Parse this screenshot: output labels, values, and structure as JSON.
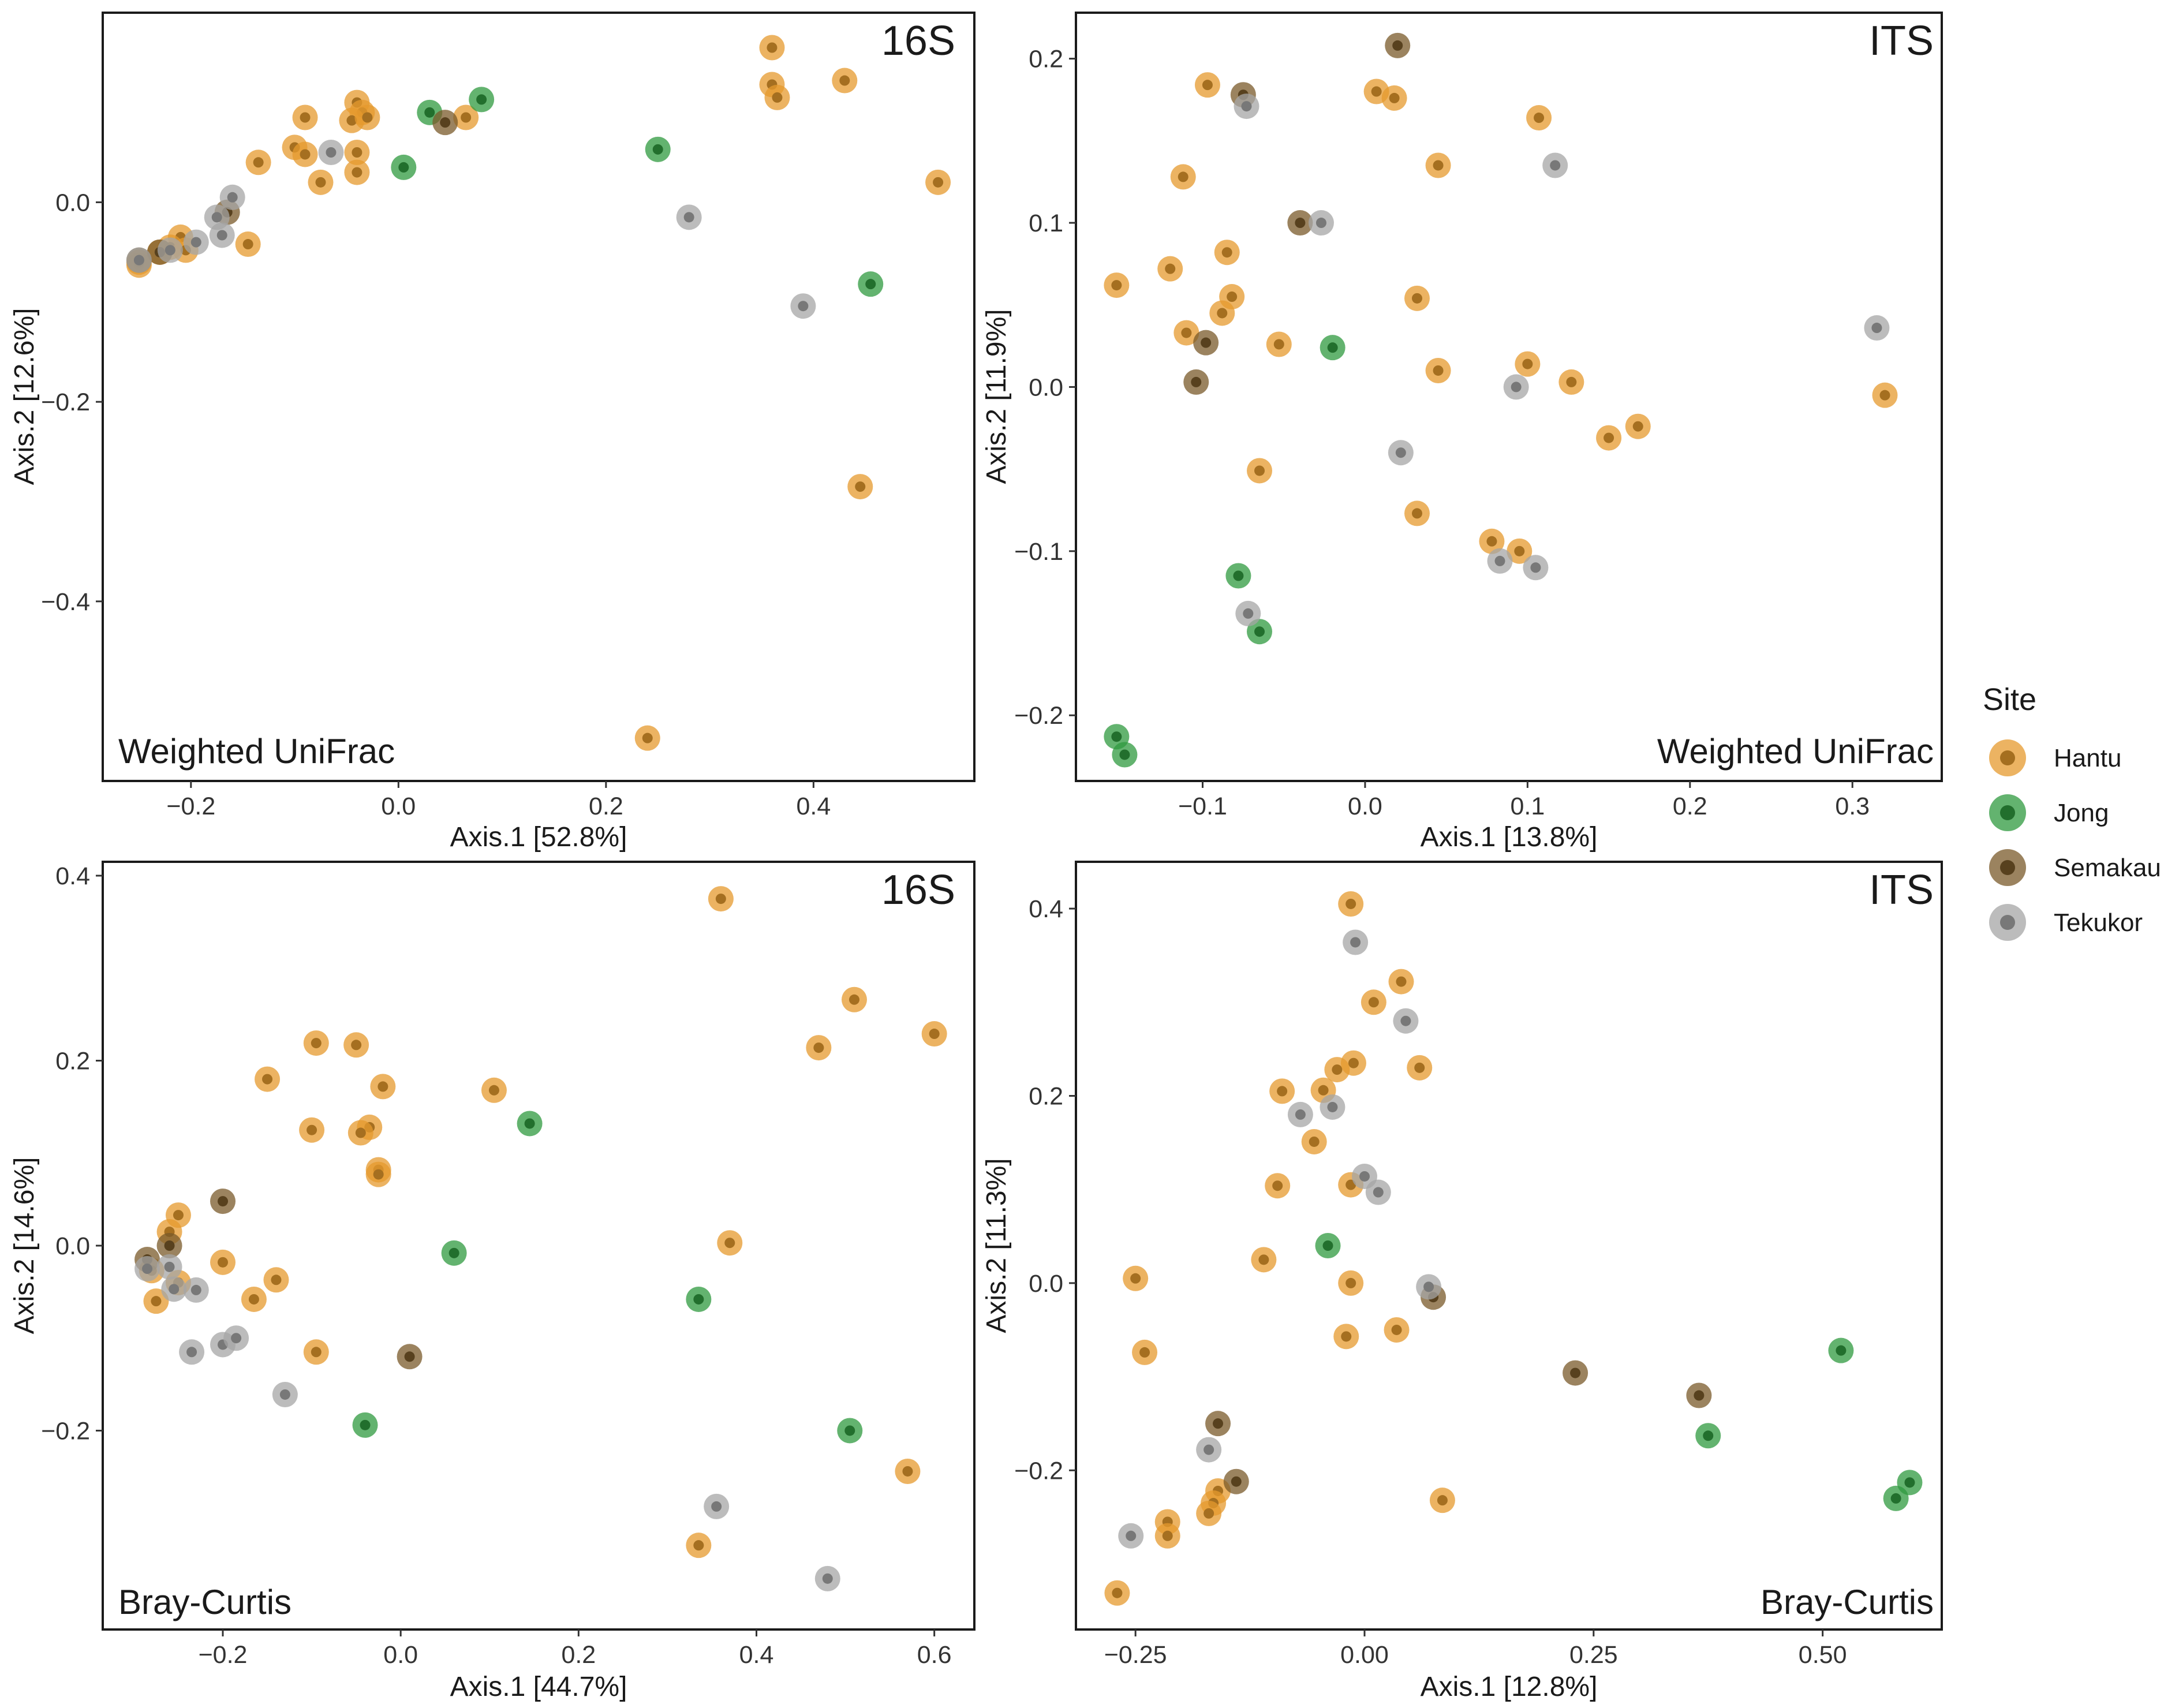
{
  "colors": {
    "Hantu": "#E59A2D",
    "Jong": "#2F9A3F",
    "Semakau": "#7A5A2A",
    "Tekukor": "#A6A6A6"
  },
  "legend": {
    "title": "Site",
    "items": [
      "Hantu",
      "Jong",
      "Semakau",
      "Tekukor"
    ]
  },
  "chart_data": [
    {
      "type": "scatter",
      "title": "16S",
      "subtitle": "Weighted UniFrac",
      "xlabel": "Axis.1   [52.8%]",
      "ylabel": "Axis.2   [12.6%]",
      "xlim": [
        -0.285,
        0.555
      ],
      "ylim": [
        -0.58,
        0.19
      ],
      "xticks": [
        -0.2,
        0.0,
        0.2,
        0.4
      ],
      "xtick_labels": [
        "−0.2",
        "0.0",
        "0.2",
        "0.4"
      ],
      "yticks": [
        0.0,
        -0.2,
        -0.4
      ],
      "ytick_labels": [
        "0.0",
        "−0.2",
        "−0.4"
      ],
      "series": [
        {
          "name": "Hantu",
          "points": [
            [
              0.36,
              0.155
            ],
            [
              0.36,
              0.118
            ],
            [
              0.365,
              0.105
            ],
            [
              0.43,
              0.122
            ],
            [
              0.52,
              0.02
            ],
            [
              0.24,
              -0.537
            ],
            [
              0.445,
              -0.285
            ],
            [
              -0.09,
              0.085
            ],
            [
              -0.04,
              0.1
            ],
            [
              -0.035,
              0.09
            ],
            [
              -0.045,
              0.082
            ],
            [
              -0.03,
              0.085
            ],
            [
              -0.1,
              0.055
            ],
            [
              -0.09,
              0.048
            ],
            [
              -0.04,
              0.05
            ],
            [
              -0.04,
              0.03
            ],
            [
              -0.075,
              0.02
            ],
            [
              -0.135,
              0.04
            ],
            [
              -0.145,
              -0.042
            ],
            [
              -0.21,
              -0.035
            ],
            [
              -0.22,
              -0.045
            ],
            [
              -0.205,
              -0.048
            ],
            [
              -0.25,
              -0.063
            ],
            [
              -0.25,
              -0.06
            ],
            [
              -0.23,
              -0.05
            ],
            [
              0.065,
              0.085
            ]
          ]
        },
        {
          "name": "Jong",
          "points": [
            [
              0.03,
              0.09
            ],
            [
              0.08,
              0.103
            ],
            [
              0.005,
              0.035
            ],
            [
              0.25,
              0.053
            ],
            [
              0.455,
              -0.082
            ]
          ]
        },
        {
          "name": "Semakau",
          "points": [
            [
              0.045,
              0.08
            ],
            [
              -0.165,
              -0.01
            ],
            [
              -0.25,
              -0.058
            ],
            [
              -0.23,
              -0.05
            ]
          ]
        },
        {
          "name": "Tekukor",
          "points": [
            [
              -0.065,
              0.05
            ],
            [
              -0.16,
              0.005
            ],
            [
              -0.175,
              -0.015
            ],
            [
              -0.17,
              -0.033
            ],
            [
              -0.195,
              -0.04
            ],
            [
              0.28,
              -0.015
            ],
            [
              0.39,
              -0.104
            ],
            [
              -0.22,
              -0.048
            ],
            [
              -0.25,
              -0.058
            ]
          ]
        }
      ]
    },
    {
      "type": "scatter",
      "title": "ITS",
      "subtitle": "Weighted UniFrac",
      "xlabel": "Axis.1   [13.8%]",
      "ylabel": "Axis.2   [11.9%]",
      "xlim": [
        -0.178,
        0.355
      ],
      "ylim": [
        -0.24,
        0.228
      ],
      "xticks": [
        -0.1,
        0.0,
        0.1,
        0.2,
        0.3
      ],
      "xtick_labels": [
        "−0.1",
        "0.0",
        "0.1",
        "0.2",
        "0.3"
      ],
      "yticks": [
        0.2,
        0.1,
        0.0,
        -0.1,
        -0.2
      ],
      "ytick_labels": [
        "0.2",
        "0.1",
        "0.0",
        "−0.1",
        "−0.2"
      ],
      "series": [
        {
          "name": "Hantu",
          "points": [
            [
              -0.097,
              0.184
            ],
            [
              0.007,
              0.18
            ],
            [
              0.018,
              0.176
            ],
            [
              0.107,
              0.164
            ],
            [
              0.045,
              0.135
            ],
            [
              -0.112,
              0.128
            ],
            [
              -0.153,
              0.062
            ],
            [
              -0.12,
              0.072
            ],
            [
              -0.085,
              0.082
            ],
            [
              -0.082,
              0.055
            ],
            [
              -0.088,
              0.045
            ],
            [
              -0.11,
              0.033
            ],
            [
              -0.053,
              0.026
            ],
            [
              0.032,
              0.054
            ],
            [
              0.045,
              0.01
            ],
            [
              0.1,
              0.014
            ],
            [
              0.127,
              0.003
            ],
            [
              0.15,
              -0.031
            ],
            [
              0.168,
              -0.024
            ],
            [
              -0.065,
              -0.051
            ],
            [
              0.032,
              -0.077
            ],
            [
              0.078,
              -0.094
            ],
            [
              0.095,
              -0.1
            ],
            [
              0.32,
              -0.005
            ]
          ]
        },
        {
          "name": "Jong",
          "points": [
            [
              -0.02,
              0.024
            ],
            [
              -0.078,
              -0.115
            ],
            [
              -0.065,
              -0.149
            ],
            [
              -0.153,
              -0.213
            ],
            [
              -0.148,
              -0.224
            ]
          ]
        },
        {
          "name": "Semakau",
          "points": [
            [
              0.02,
              0.208
            ],
            [
              -0.075,
              0.178
            ],
            [
              -0.04,
              0.1
            ],
            [
              -0.098,
              0.027
            ],
            [
              -0.104,
              0.003
            ]
          ]
        },
        {
          "name": "Tekukor",
          "points": [
            [
              -0.073,
              0.171
            ],
            [
              -0.027,
              0.1
            ],
            [
              0.117,
              0.135
            ],
            [
              0.315,
              0.036
            ],
            [
              0.093,
              0.0
            ],
            [
              0.022,
              -0.04
            ],
            [
              0.083,
              -0.106
            ],
            [
              0.105,
              -0.11
            ],
            [
              -0.072,
              -0.138
            ]
          ]
        }
      ]
    },
    {
      "type": "scatter",
      "title": "16S",
      "subtitle": "Bray-Curtis",
      "xlabel": "Axis.1   [44.7%]",
      "ylabel": "Axis.2   [14.6%]",
      "xlim": [
        -0.335,
        0.645
      ],
      "ylim": [
        -0.415,
        0.415
      ],
      "xticks": [
        -0.2,
        0.0,
        0.2,
        0.4,
        0.6
      ],
      "xtick_labels": [
        "−0.2",
        "0.0",
        "0.2",
        "0.4",
        "0.6"
      ],
      "yticks": [
        0.4,
        0.2,
        0.0,
        -0.2
      ],
      "ytick_labels": [
        "0.4",
        "0.2",
        "0.0",
        "−0.2"
      ],
      "series": [
        {
          "name": "Hantu",
          "points": [
            [
              0.36,
              0.375
            ],
            [
              0.51,
              0.266
            ],
            [
              0.6,
              0.229
            ],
            [
              0.47,
              0.214
            ],
            [
              -0.095,
              0.219
            ],
            [
              -0.05,
              0.217
            ],
            [
              -0.15,
              0.18
            ],
            [
              -0.02,
              0.172
            ],
            [
              0.105,
              0.168
            ],
            [
              -0.1,
              0.125
            ],
            [
              -0.035,
              0.128
            ],
            [
              -0.045,
              0.122
            ],
            [
              -0.025,
              0.082
            ],
            [
              -0.025,
              0.077
            ],
            [
              -0.25,
              0.033
            ],
            [
              -0.26,
              0.015
            ],
            [
              -0.2,
              -0.018
            ],
            [
              -0.25,
              -0.04
            ],
            [
              -0.28,
              -0.027
            ],
            [
              -0.275,
              -0.06
            ],
            [
              -0.165,
              -0.058
            ],
            [
              -0.14,
              -0.037
            ],
            [
              -0.095,
              -0.115
            ],
            [
              0.37,
              0.003
            ],
            [
              0.57,
              -0.244
            ],
            [
              0.335,
              -0.324
            ]
          ]
        },
        {
          "name": "Jong",
          "points": [
            [
              0.145,
              0.132
            ],
            [
              0.06,
              -0.008
            ],
            [
              0.335,
              -0.058
            ],
            [
              0.505,
              -0.2
            ],
            [
              -0.04,
              -0.194
            ]
          ]
        },
        {
          "name": "Semakau",
          "points": [
            [
              -0.2,
              0.048
            ],
            [
              -0.26,
              0.0
            ],
            [
              -0.285,
              -0.015
            ],
            [
              0.01,
              -0.12
            ]
          ]
        },
        {
          "name": "Tekukor",
          "points": [
            [
              -0.26,
              -0.023
            ],
            [
              -0.255,
              -0.047
            ],
            [
              -0.23,
              -0.048
            ],
            [
              -0.2,
              -0.107
            ],
            [
              -0.185,
              -0.1
            ],
            [
              -0.235,
              -0.115
            ],
            [
              -0.13,
              -0.161
            ],
            [
              0.355,
              -0.282
            ],
            [
              0.48,
              -0.36
            ],
            [
              -0.285,
              -0.025
            ]
          ]
        }
      ]
    },
    {
      "type": "scatter",
      "title": "ITS",
      "subtitle": "Bray-Curtis",
      "xlabel": "Axis.1   [12.8%]",
      "ylabel": "Axis.2   [11.3%]",
      "xlim": [
        -0.315,
        0.63
      ],
      "ylim": [
        -0.37,
        0.45
      ],
      "xticks": [
        -0.25,
        0.0,
        0.25,
        0.5
      ],
      "xtick_labels": [
        "−0.25",
        "0.00",
        "0.25",
        "0.50"
      ],
      "yticks": [
        0.4,
        0.2,
        0.0,
        -0.2
      ],
      "ytick_labels": [
        "0.4",
        "0.2",
        "0.0",
        "−0.2"
      ],
      "series": [
        {
          "name": "Hantu",
          "points": [
            [
              -0.015,
              0.405
            ],
            [
              0.04,
              0.322
            ],
            [
              0.01,
              0.3
            ],
            [
              0.06,
              0.23
            ],
            [
              -0.03,
              0.228
            ],
            [
              -0.012,
              0.235
            ],
            [
              -0.09,
              0.205
            ],
            [
              -0.045,
              0.206
            ],
            [
              -0.055,
              0.151
            ],
            [
              -0.095,
              0.104
            ],
            [
              -0.015,
              0.105
            ],
            [
              -0.11,
              0.025
            ],
            [
              -0.015,
              0.0
            ],
            [
              -0.25,
              0.005
            ],
            [
              -0.24,
              -0.074
            ],
            [
              -0.02,
              -0.057
            ],
            [
              0.035,
              -0.05
            ],
            [
              0.085,
              -0.232
            ],
            [
              -0.16,
              -0.222
            ],
            [
              -0.165,
              -0.235
            ],
            [
              -0.17,
              -0.246
            ],
            [
              -0.215,
              -0.255
            ],
            [
              -0.215,
              -0.27
            ],
            [
              -0.27,
              -0.331
            ]
          ]
        },
        {
          "name": "Jong",
          "points": [
            [
              -0.04,
              0.04
            ],
            [
              0.52,
              -0.072
            ],
            [
              0.375,
              -0.163
            ],
            [
              0.595,
              -0.213
            ],
            [
              0.58,
              -0.23
            ]
          ]
        },
        {
          "name": "Semakau",
          "points": [
            [
              0.075,
              -0.015
            ],
            [
              0.23,
              -0.096
            ],
            [
              0.365,
              -0.12
            ],
            [
              -0.16,
              -0.15
            ],
            [
              -0.14,
              -0.212
            ]
          ]
        },
        {
          "name": "Tekukor",
          "points": [
            [
              -0.01,
              0.364
            ],
            [
              0.045,
              0.28
            ],
            [
              -0.07,
              0.18
            ],
            [
              -0.035,
              0.188
            ],
            [
              0.0,
              0.114
            ],
            [
              0.015,
              0.097
            ],
            [
              0.07,
              -0.004
            ],
            [
              -0.17,
              -0.178
            ],
            [
              -0.255,
              -0.27
            ]
          ]
        }
      ]
    }
  ]
}
